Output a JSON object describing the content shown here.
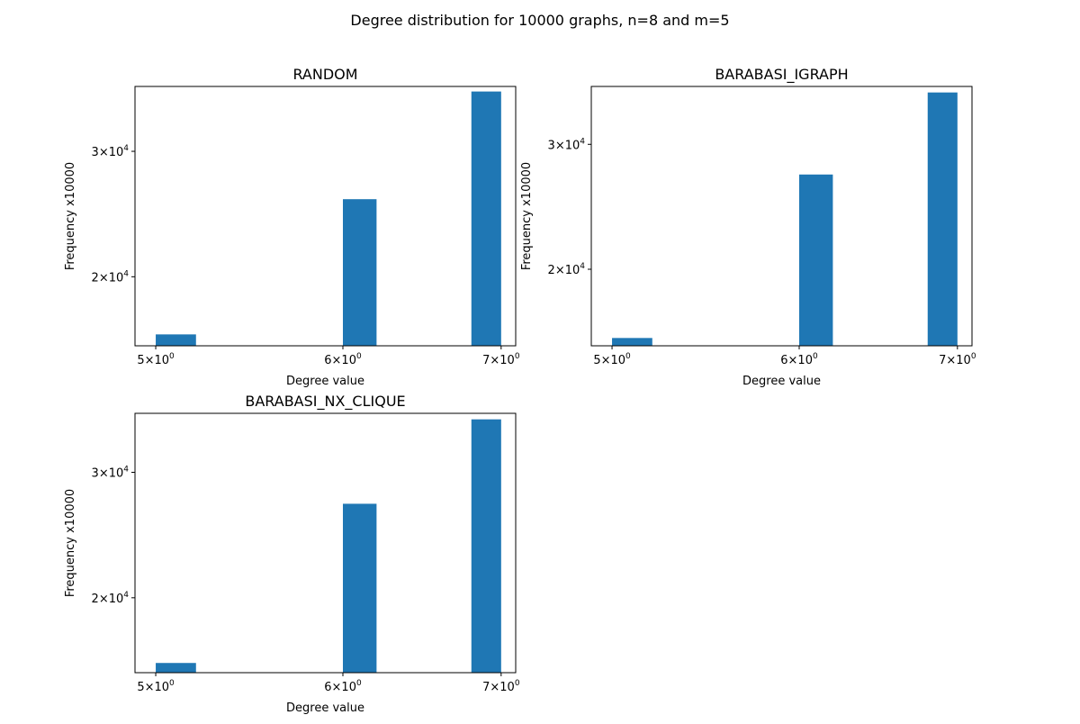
{
  "figure": {
    "title": "Degree distribution for 10000 graphs, n=8 and m=5",
    "bar_color": "#1f77b4"
  },
  "chart_data": [
    {
      "type": "bar",
      "title": "RANDOM",
      "xlabel": "Degree value",
      "ylabel": "Frequency x10000",
      "xscale": "log",
      "yscale": "log",
      "x_ticks": [
        {
          "value": 5,
          "mantissa": "5",
          "exp": "0"
        },
        {
          "value": 6,
          "mantissa": "6",
          "exp": "0"
        },
        {
          "value": 7,
          "mantissa": "7",
          "exp": "0"
        }
      ],
      "y_ticks": [
        {
          "value": 20000,
          "mantissa": "2",
          "exp": "4"
        },
        {
          "value": 30000,
          "mantissa": "3",
          "exp": "4"
        }
      ],
      "xlim": [
        4.9,
        7.1
      ],
      "ylim": [
        16000,
        37000
      ],
      "bars": [
        {
          "x0": 5.0,
          "x1": 5.2,
          "value": 16600
        },
        {
          "x0": 6.0,
          "x1": 6.2,
          "value": 25700
        },
        {
          "x0": 6.8,
          "x1": 7.0,
          "value": 36400
        }
      ],
      "grid": false
    },
    {
      "type": "bar",
      "title": "BARABASI_IGRAPH",
      "xlabel": "Degree value",
      "ylabel": "Frequency x10000",
      "xscale": "log",
      "yscale": "log",
      "x_ticks": [
        {
          "value": 5,
          "mantissa": "5",
          "exp": "0"
        },
        {
          "value": 6,
          "mantissa": "6",
          "exp": "0"
        },
        {
          "value": 7,
          "mantissa": "7",
          "exp": "0"
        }
      ],
      "y_ticks": [
        {
          "value": 20000,
          "mantissa": "2",
          "exp": "4"
        },
        {
          "value": 30000,
          "mantissa": "3",
          "exp": "4"
        }
      ],
      "xlim": [
        4.9,
        7.1
      ],
      "ylim": [
        15600,
        36200
      ],
      "bars": [
        {
          "x0": 5.0,
          "x1": 5.2,
          "value": 16000
        },
        {
          "x0": 6.0,
          "x1": 6.2,
          "value": 27200
        },
        {
          "x0": 6.8,
          "x1": 7.0,
          "value": 35500
        }
      ],
      "grid": false
    },
    {
      "type": "bar",
      "title": "BARABASI_NX_CLIQUE",
      "xlabel": "Degree value",
      "ylabel": "Frequency x10000",
      "xscale": "log",
      "yscale": "log",
      "x_ticks": [
        {
          "value": 5,
          "mantissa": "5",
          "exp": "0"
        },
        {
          "value": 6,
          "mantissa": "6",
          "exp": "0"
        },
        {
          "value": 7,
          "mantissa": "7",
          "exp": "0"
        }
      ],
      "y_ticks": [
        {
          "value": 20000,
          "mantissa": "2",
          "exp": "4"
        },
        {
          "value": 30000,
          "mantissa": "3",
          "exp": "4"
        }
      ],
      "xlim": [
        4.9,
        7.1
      ],
      "ylim": [
        15700,
        36300
      ],
      "bars": [
        {
          "x0": 5.0,
          "x1": 5.2,
          "value": 16200
        },
        {
          "x0": 6.0,
          "x1": 6.2,
          "value": 27100
        },
        {
          "x0": 6.8,
          "x1": 7.0,
          "value": 35600
        }
      ],
      "grid": false
    }
  ]
}
